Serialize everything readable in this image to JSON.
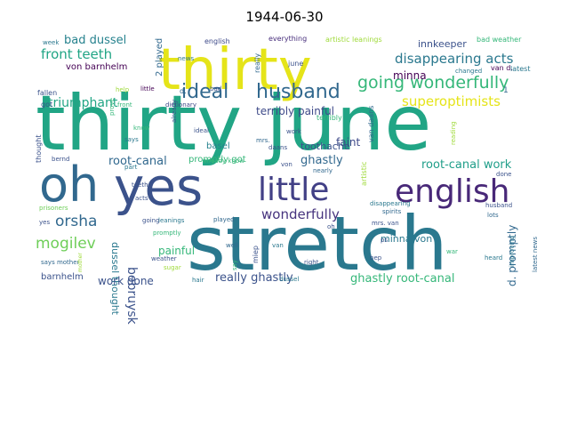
{
  "title": "1944-06-30",
  "words": [
    {
      "text": "thirty june",
      "color": "#21a585"
    },
    {
      "text": "stretch",
      "color": "#2a788e"
    },
    {
      "text": "thirty",
      "color": "#e5e419"
    },
    {
      "text": "oh",
      "color": "#31688e"
    },
    {
      "text": "yes",
      "color": "#3b528b"
    },
    {
      "text": "little",
      "color": "#424086"
    },
    {
      "text": "english",
      "color": "#482878"
    },
    {
      "text": "ideal",
      "color": "#31688e"
    },
    {
      "text": "husband",
      "color": "#31688e"
    },
    {
      "text": "going wonderfully",
      "color": "#35b779"
    },
    {
      "text": "disappearing acts",
      "color": "#2a788e"
    },
    {
      "text": "superoptimists",
      "color": "#e5e419"
    },
    {
      "text": "front teeth",
      "color": "#21a585"
    },
    {
      "text": "triumphant",
      "color": "#21a585"
    },
    {
      "text": "bad dussel",
      "color": "#26828e"
    },
    {
      "text": "innkeeper",
      "color": "#3b528b"
    },
    {
      "text": "minna",
      "color": "#440154"
    },
    {
      "text": "von barnhelm",
      "color": "#440154"
    },
    {
      "text": "terribly painful",
      "color": "#3e4a89"
    },
    {
      "text": "root-canal work",
      "color": "#1f9e89"
    },
    {
      "text": "root-canal",
      "color": "#31688e"
    },
    {
      "text": "wonderfully",
      "color": "#46337e"
    },
    {
      "text": "ghastly",
      "color": "#31688e"
    },
    {
      "text": "faint",
      "color": "#3e4a89"
    },
    {
      "text": "toothache",
      "color": "#3b528b"
    },
    {
      "text": "basel",
      "color": "#26828e"
    },
    {
      "text": "promptly got",
      "color": "#35b779"
    },
    {
      "text": "orsha",
      "color": "#31688e"
    },
    {
      "text": "mogilev",
      "color": "#6ece58"
    },
    {
      "text": "bobruysk",
      "color": "#3b528b"
    },
    {
      "text": "dussel thought",
      "color": "#2a788e"
    },
    {
      "text": "painful",
      "color": "#35b779"
    },
    {
      "text": "work done",
      "color": "#3b528b"
    },
    {
      "text": "really ghastly",
      "color": "#3b528b"
    },
    {
      "text": "ghastly root-canal",
      "color": "#35b779"
    },
    {
      "text": "minna von",
      "color": "#2a788e"
    },
    {
      "text": "d. promptly",
      "color": "#31688e"
    },
    {
      "text": "barnhelm",
      "color": "#3b528b"
    },
    {
      "text": "english",
      "color": "#3e4a89"
    },
    {
      "text": "everything",
      "color": "#472d7b"
    },
    {
      "text": "artistic leanings",
      "color": "#9fda3a"
    },
    {
      "text": "bad weather",
      "color": "#35b779"
    },
    {
      "text": "week",
      "color": "#2a788e"
    },
    {
      "text": "2 played",
      "color": "#31688e"
    },
    {
      "text": "news",
      "color": "#2a788e"
    },
    {
      "text": "really",
      "color": "#31688e"
    },
    {
      "text": "june",
      "color": "#3b528b"
    },
    {
      "text": "changed",
      "color": "#2a788e"
    },
    {
      "text": "van d.",
      "color": "#440154"
    },
    {
      "text": "latest",
      "color": "#2a788e"
    },
    {
      "text": "fallen",
      "color": "#3b528b"
    },
    {
      "text": "help",
      "color": "#9fda3a"
    },
    {
      "text": "little",
      "color": "#440154"
    },
    {
      "text": "bad",
      "color": "#3b528b"
    },
    {
      "text": "got",
      "color": "#3b528b"
    },
    {
      "text": "front",
      "color": "#35b779"
    },
    {
      "text": "dictionary",
      "color": "#3e4a89"
    },
    {
      "text": "terribly",
      "color": "#35b779"
    },
    {
      "text": "van daans",
      "color": "#31688e"
    },
    {
      "text": "says",
      "color": "#2a788e"
    },
    {
      "text": "ideal",
      "color": "#3b528b"
    },
    {
      "text": "mrs.",
      "color": "#31688e"
    },
    {
      "text": "work",
      "color": "#3b528b"
    },
    {
      "text": "already",
      "color": "#3b528b"
    },
    {
      "text": "thought",
      "color": "#3b528b"
    },
    {
      "text": "bernd",
      "color": "#3b528b"
    },
    {
      "text": "already know",
      "color": "#35b779"
    },
    {
      "text": "part",
      "color": "#2a788e"
    },
    {
      "text": "nearly",
      "color": "#31688e"
    },
    {
      "text": "done",
      "color": "#3b528b"
    },
    {
      "text": "teeth",
      "color": "#3b528b"
    },
    {
      "text": "acts",
      "color": "#3b528b"
    },
    {
      "text": "prisoners",
      "color": "#6ece58"
    },
    {
      "text": "spirits",
      "color": "#31688e"
    },
    {
      "text": "husband",
      "color": "#3b528b"
    },
    {
      "text": "lots",
      "color": "#31688e"
    },
    {
      "text": "yes",
      "color": "#3b528b"
    },
    {
      "text": "going",
      "color": "#3b528b"
    },
    {
      "text": "leanings",
      "color": "#2a788e"
    },
    {
      "text": "played",
      "color": "#31688e"
    },
    {
      "text": "mrs. van",
      "color": "#3b528b"
    },
    {
      "text": "promptly",
      "color": "#35b779"
    },
    {
      "text": "well",
      "color": "#31688e"
    },
    {
      "text": "van",
      "color": "#2a788e"
    },
    {
      "text": "oh",
      "color": "#3b528b"
    },
    {
      "text": "ps",
      "color": "#3b528b"
    },
    {
      "text": "heard",
      "color": "#2a788e"
    },
    {
      "text": "improving",
      "color": "#2a788e"
    },
    {
      "text": "latest news",
      "color": "#31688e"
    },
    {
      "text": "says mother",
      "color": "#31688e"
    },
    {
      "text": "weather",
      "color": "#3b528b"
    },
    {
      "text": "sugar",
      "color": "#9fda3a"
    },
    {
      "text": "right",
      "color": "#3b528b"
    },
    {
      "text": "bep",
      "color": "#3b528b"
    },
    {
      "text": "war",
      "color": "#35b779"
    },
    {
      "text": "hair",
      "color": "#2a788e"
    },
    {
      "text": "dussel",
      "color": "#2a788e"
    },
    {
      "text": "disappearing",
      "color": "#2a788e"
    },
    {
      "text": "reading",
      "color": "#9fda3a"
    },
    {
      "text": "say",
      "color": "#35b779"
    },
    {
      "text": "prove",
      "color": "#35b779"
    },
    {
      "text": "know",
      "color": "#35b779"
    },
    {
      "text": "von",
      "color": "#3b528b"
    },
    {
      "text": "mother",
      "color": "#9fda3a"
    },
    {
      "text": "1",
      "color": "#31688e"
    },
    {
      "text": "d.",
      "color": "#31688e"
    },
    {
      "text": "artistic",
      "color": "#9fda3a"
    },
    {
      "text": "miep",
      "color": "#3b528b"
    },
    {
      "text": "daans",
      "color": "#3b528b"
    }
  ]
}
